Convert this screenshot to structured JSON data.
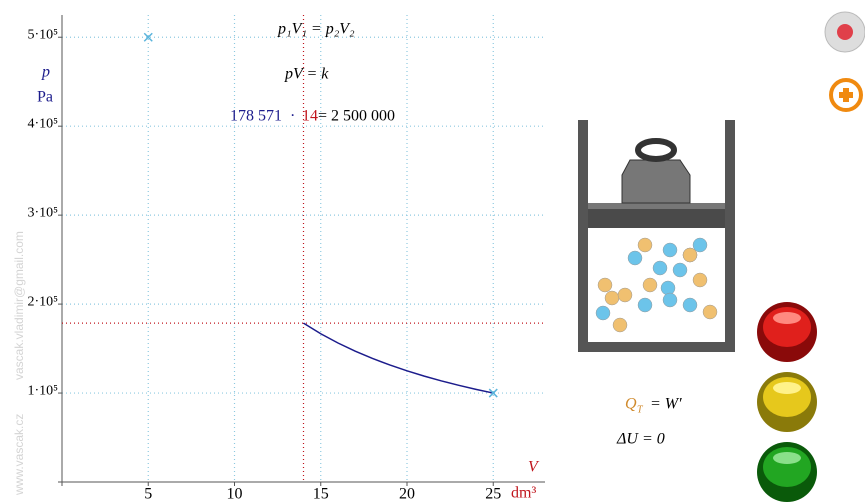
{
  "chart_data": {
    "type": "line",
    "xlim": [
      0,
      28
    ],
    "ylim": [
      0,
      525000
    ],
    "xticks": [
      5,
      10,
      15,
      20,
      25
    ],
    "yticks": [
      {
        "value": 100000,
        "label": "1·10⁵"
      },
      {
        "value": 200000,
        "label": "2·10⁵"
      },
      {
        "value": 300000,
        "label": "3·10⁵"
      },
      {
        "value": 400000,
        "label": "4·10⁵"
      },
      {
        "value": 500000,
        "label": "5·10⁵"
      }
    ],
    "grid": true,
    "y_label": "p",
    "y_unit": "Pa",
    "x_label": "V",
    "x_unit": "dm³",
    "series": [
      {
        "type": "line",
        "color": "#1c1c8c",
        "x": [
          14,
          15,
          16,
          17,
          18,
          19,
          20,
          21,
          22,
          23,
          24,
          25
        ],
        "values": [
          178571,
          166667,
          156250,
          147059,
          138889,
          131579,
          125000,
          119048,
          113636,
          108696,
          104167,
          100000
        ]
      },
      {
        "type": "scatter",
        "color": "#5ab4dc",
        "x": [
          5,
          25
        ],
        "values": [
          500000,
          100000
        ]
      }
    ],
    "cursor": {
      "x": 14,
      "y": 178571,
      "color": "#c0141c"
    }
  },
  "formulas": {
    "law": "p₁V₁ = p₂V₂",
    "constant": "pV = k",
    "pressure": "178 571",
    "dot": "·",
    "volume": "14",
    "product": "= 2 500 000",
    "heat": "Q",
    "heat_sub": "T",
    "work": "= W′",
    "energy": "ΔU = 0"
  },
  "watermark": {
    "site": "www.vascak.cz",
    "email": "vascak.vladimir@gmail.com"
  }
}
